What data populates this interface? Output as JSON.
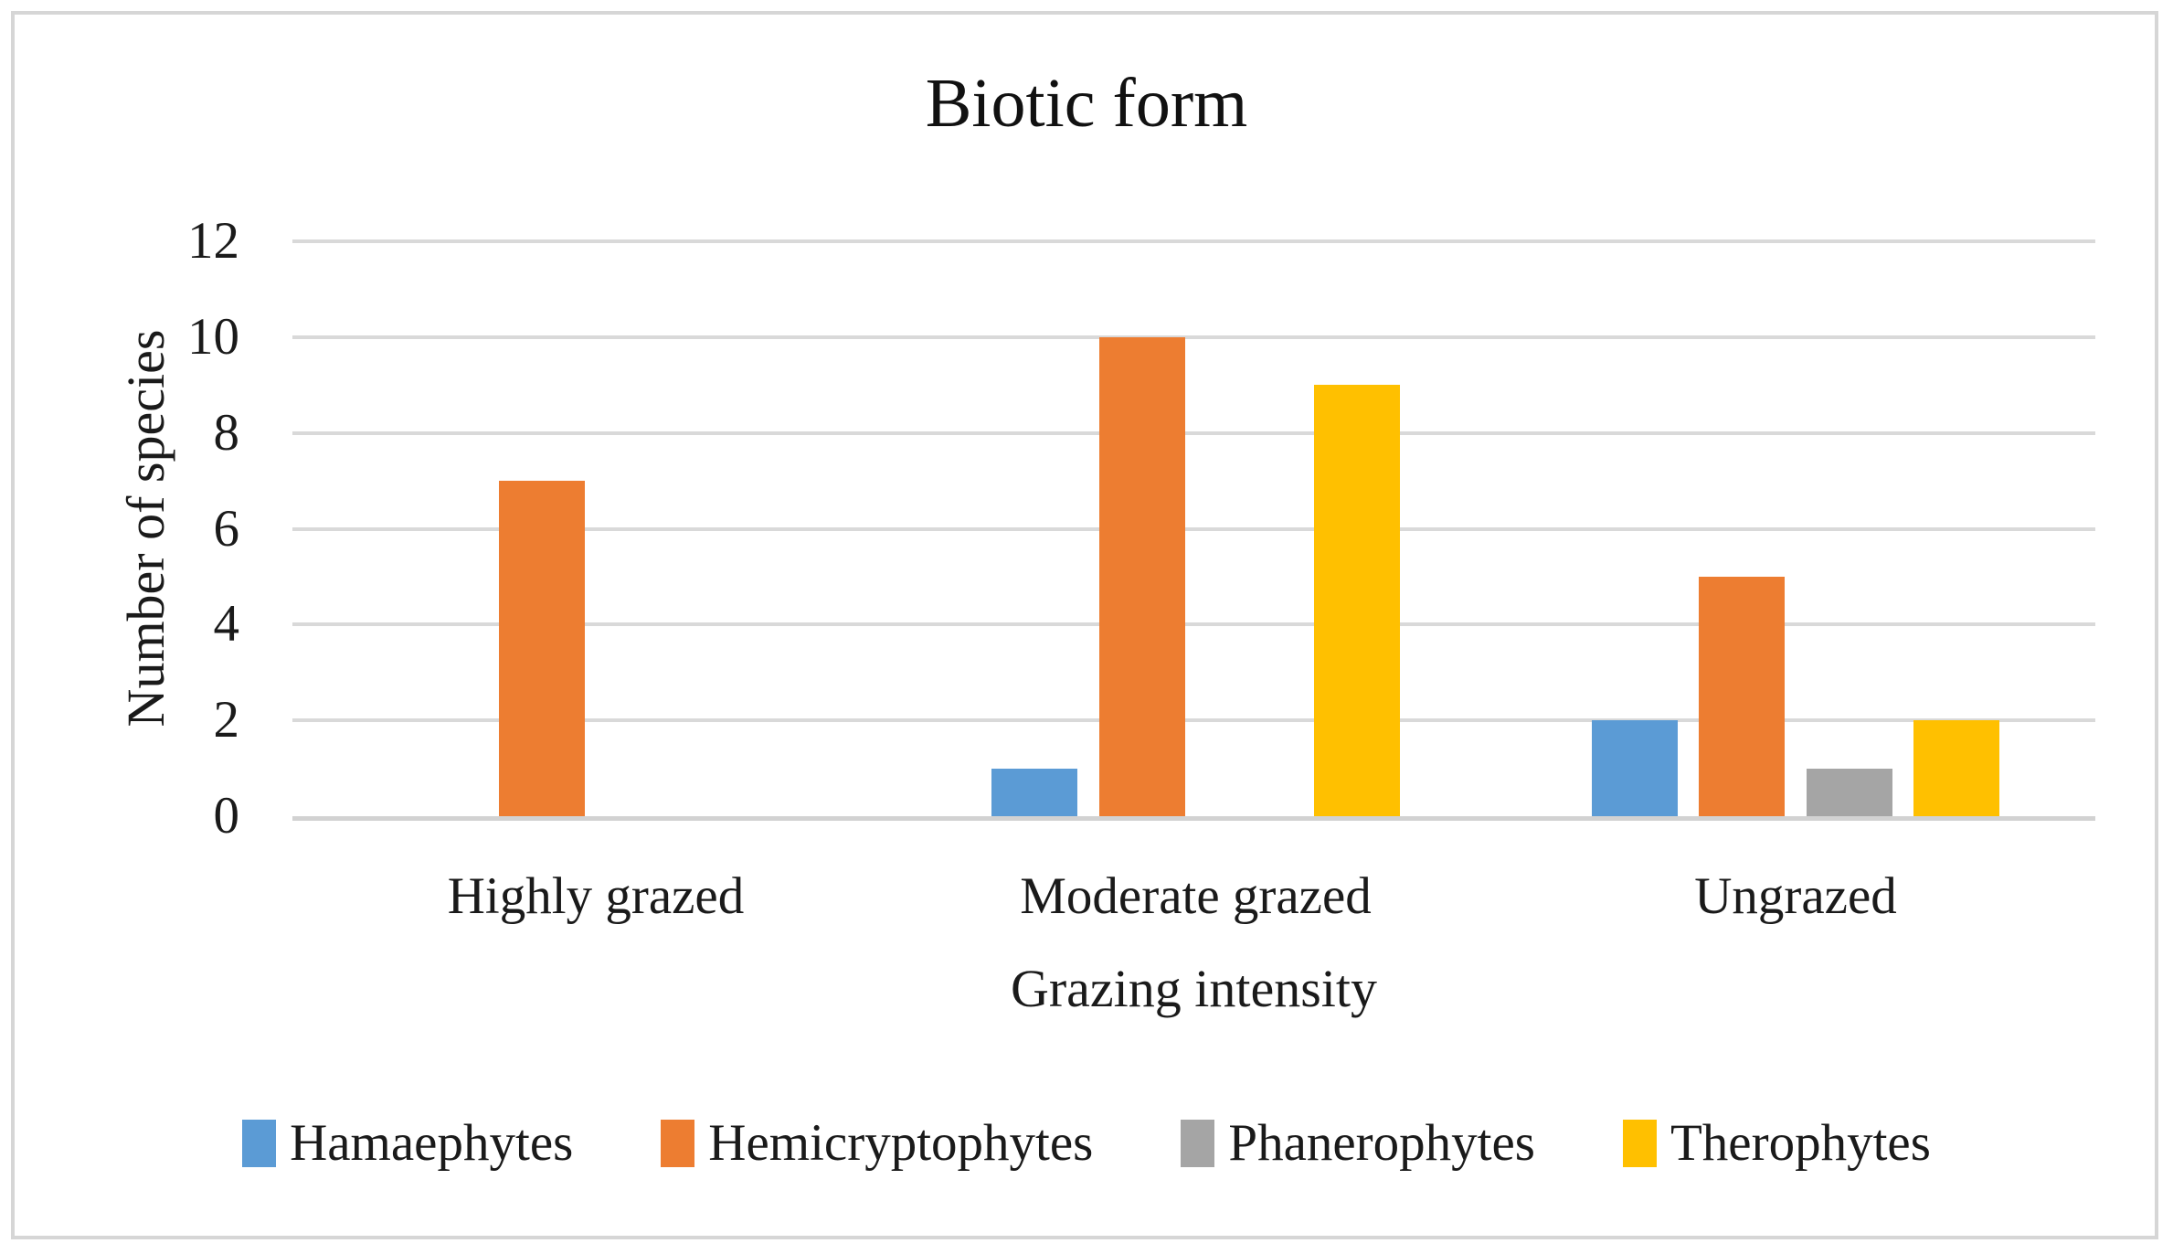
{
  "chart_data": {
    "type": "bar",
    "title": "Biotic form",
    "xlabel": "Grazing intensity",
    "ylabel": "Number of species",
    "categories": [
      "Highly grazed",
      "Moderate grazed",
      "Ungrazed"
    ],
    "series": [
      {
        "name": "Hamaephytes",
        "color": "#5B9BD5",
        "values": [
          0,
          1,
          2
        ]
      },
      {
        "name": "Hemicryptophytes",
        "color": "#ED7D31",
        "values": [
          7,
          10,
          5
        ]
      },
      {
        "name": "Phanerophytes",
        "color": "#A5A5A5",
        "values": [
          0,
          0,
          1
        ]
      },
      {
        "name": "Therophytes",
        "color": "#FFC000",
        "values": [
          0,
          9,
          2
        ]
      }
    ],
    "ylim": [
      0,
      12
    ],
    "ytick_step": 2,
    "yticks": [
      0,
      2,
      4,
      6,
      8,
      10,
      12
    ],
    "grid": "horizontal",
    "legend_position": "bottom",
    "gridline_color": "#D9D9D9",
    "axis_line_color": "#D2D2D2",
    "background_color": "#FFFFFF",
    "border_color": "#D6D6D6"
  }
}
